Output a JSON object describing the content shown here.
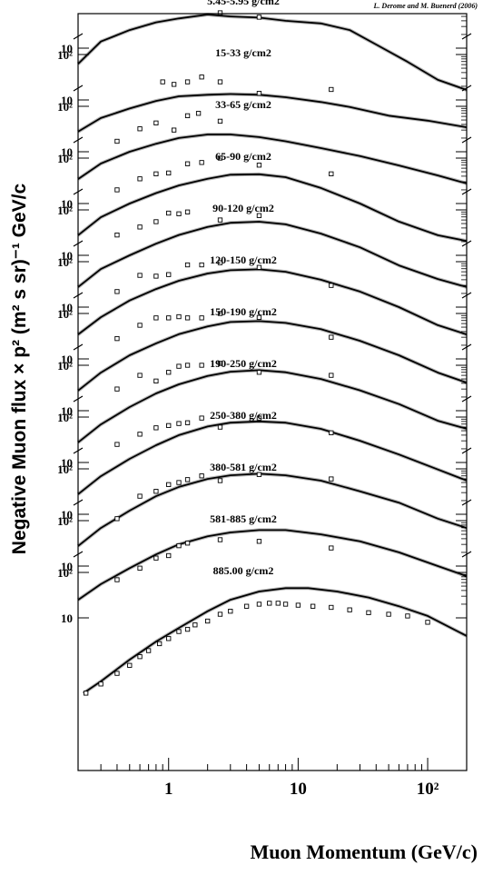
{
  "chart_data": {
    "type": "line",
    "credit": "L. Derome and M. Buenerd (2006)",
    "xlabel": "Muon Momentum (GeV/c)",
    "ylabel": "Negative Muon flux × p² (m² s sr)⁻¹ GeV/c",
    "xscale": "log",
    "yscale": "log",
    "xlim": [
      0.2,
      200
    ],
    "x_ticks": [
      {
        "value": 1,
        "label": "1"
      },
      {
        "value": 10,
        "label": "10"
      },
      {
        "value": 100,
        "label": "10²"
      }
    ],
    "panel_y_ticks": [
      {
        "value": 100,
        "label": "10²"
      },
      {
        "value": 10,
        "label": "10"
      }
    ],
    "panels": [
      {
        "label": "5.45-5.95 g/cm2",
        "model": [
          [
            0.2,
            4.5
          ],
          [
            0.3,
            14
          ],
          [
            0.5,
            25
          ],
          [
            0.8,
            37
          ],
          [
            1.2,
            45
          ],
          [
            2,
            55
          ],
          [
            3,
            50
          ],
          [
            5,
            47
          ],
          [
            8,
            40
          ],
          [
            15,
            35
          ],
          [
            25,
            25
          ],
          [
            40,
            12
          ],
          [
            70,
            5
          ],
          [
            120,
            2
          ],
          [
            200,
            1.2
          ]
        ],
        "data": [
          [
            2.5,
            60
          ],
          [
            5,
            48
          ]
        ]
      },
      {
        "label": "15-33 g/cm2",
        "model": [
          [
            0.2,
            2
          ],
          [
            0.3,
            4
          ],
          [
            0.5,
            6.5
          ],
          [
            0.8,
            9.5
          ],
          [
            1.2,
            12
          ],
          [
            2,
            13
          ],
          [
            3,
            13.5
          ],
          [
            5,
            13
          ],
          [
            8,
            11.5
          ],
          [
            15,
            9
          ],
          [
            25,
            7
          ],
          [
            50,
            4.5
          ],
          [
            100,
            3.5
          ],
          [
            200,
            2.5
          ]
        ],
        "data": [
          [
            0.9,
            25
          ],
          [
            1.1,
            22
          ],
          [
            1.4,
            25
          ],
          [
            1.8,
            32
          ],
          [
            2.5,
            25
          ],
          [
            5,
            14
          ],
          [
            18,
            17
          ]
        ]
      },
      {
        "label": "33-65 g/cm2",
        "model": [
          [
            0.2,
            2.5
          ],
          [
            0.3,
            5.5
          ],
          [
            0.5,
            10
          ],
          [
            0.8,
            15
          ],
          [
            1.2,
            20
          ],
          [
            2,
            24
          ],
          [
            3,
            24
          ],
          [
            5,
            21
          ],
          [
            8,
            17
          ],
          [
            15,
            12
          ],
          [
            30,
            8
          ],
          [
            60,
            5
          ],
          [
            120,
            3
          ],
          [
            200,
            2
          ]
        ],
        "data": [
          [
            0.4,
            17
          ],
          [
            0.6,
            32
          ],
          [
            0.8,
            43
          ],
          [
            1.1,
            30
          ],
          [
            1.4,
            62
          ],
          [
            1.7,
            70
          ],
          [
            2.5,
            47
          ]
        ]
      },
      {
        "label": "65-90 g/cm2",
        "model": [
          [
            0.2,
            2
          ],
          [
            0.3,
            5
          ],
          [
            0.5,
            10
          ],
          [
            0.8,
            17
          ],
          [
            1.2,
            25
          ],
          [
            2,
            35
          ],
          [
            3,
            43
          ],
          [
            5,
            44
          ],
          [
            8,
            38
          ],
          [
            15,
            22
          ],
          [
            30,
            10
          ],
          [
            60,
            4
          ],
          [
            120,
            2
          ],
          [
            200,
            1.5
          ]
        ],
        "data": [
          [
            0.4,
            20
          ],
          [
            0.6,
            35
          ],
          [
            0.8,
            45
          ],
          [
            1,
            47
          ],
          [
            1.4,
            75
          ],
          [
            1.8,
            80
          ],
          [
            2.5,
            100
          ],
          [
            5,
            70
          ],
          [
            18,
            45
          ]
        ]
      },
      {
        "label": "90-120 g/cm2",
        "model": [
          [
            0.2,
            2
          ],
          [
            0.3,
            5
          ],
          [
            0.5,
            10
          ],
          [
            0.8,
            18
          ],
          [
            1.2,
            28
          ],
          [
            2,
            42
          ],
          [
            3,
            52
          ],
          [
            5,
            55
          ],
          [
            8,
            48
          ],
          [
            15,
            30
          ],
          [
            30,
            15
          ],
          [
            60,
            6
          ],
          [
            120,
            3
          ],
          [
            200,
            2
          ]
        ],
        "data": [
          [
            0.4,
            28
          ],
          [
            0.6,
            42
          ],
          [
            0.8,
            55
          ],
          [
            1,
            85
          ],
          [
            1.2,
            82
          ],
          [
            1.4,
            90
          ],
          [
            2.5,
            60
          ],
          [
            5,
            75
          ]
        ]
      },
      {
        "label": "120-150 g/cm2",
        "model": [
          [
            0.2,
            2.5
          ],
          [
            0.3,
            6
          ],
          [
            0.5,
            14
          ],
          [
            0.8,
            25
          ],
          [
            1.2,
            38
          ],
          [
            2,
            55
          ],
          [
            3,
            65
          ],
          [
            5,
            68
          ],
          [
            8,
            60
          ],
          [
            15,
            40
          ],
          [
            30,
            22
          ],
          [
            60,
            10
          ],
          [
            120,
            4
          ],
          [
            200,
            2.5
          ]
        ],
        "data": [
          [
            0.4,
            22
          ],
          [
            0.6,
            50
          ],
          [
            0.8,
            48
          ],
          [
            1,
            52
          ],
          [
            1.4,
            85
          ],
          [
            1.8,
            85
          ],
          [
            2.5,
            95
          ],
          [
            5,
            75
          ],
          [
            18,
            30
          ]
        ]
      },
      {
        "label": "150-190 g/cm2",
        "model": [
          [
            0.2,
            2
          ],
          [
            0.3,
            5
          ],
          [
            0.5,
            12
          ],
          [
            0.8,
            22
          ],
          [
            1.2,
            35
          ],
          [
            2,
            52
          ],
          [
            3,
            65
          ],
          [
            5,
            68
          ],
          [
            8,
            62
          ],
          [
            15,
            45
          ],
          [
            30,
            25
          ],
          [
            60,
            12
          ],
          [
            120,
            5
          ],
          [
            200,
            3
          ]
        ],
        "data": [
          [
            0.4,
            28
          ],
          [
            0.6,
            55
          ],
          [
            0.8,
            80
          ],
          [
            1,
            80
          ],
          [
            1.2,
            85
          ],
          [
            1.4,
            80
          ],
          [
            1.8,
            80
          ],
          [
            2.5,
            100
          ],
          [
            5,
            82
          ],
          [
            18,
            30
          ]
        ]
      },
      {
        "label": "190-250 g/cm2",
        "model": [
          [
            0.2,
            2
          ],
          [
            0.3,
            5
          ],
          [
            0.5,
            12
          ],
          [
            0.8,
            24
          ],
          [
            1.2,
            38
          ],
          [
            2,
            58
          ],
          [
            3,
            72
          ],
          [
            5,
            78
          ],
          [
            8,
            70
          ],
          [
            15,
            50
          ],
          [
            30,
            28
          ],
          [
            60,
            14
          ],
          [
            120,
            6
          ],
          [
            200,
            4
          ]
        ],
        "data": [
          [
            0.4,
            30
          ],
          [
            0.6,
            60
          ],
          [
            0.8,
            45
          ],
          [
            1,
            70
          ],
          [
            1.2,
            95
          ],
          [
            1.4,
            100
          ],
          [
            1.8,
            100
          ],
          [
            2.5,
            110
          ],
          [
            5,
            70
          ],
          [
            18,
            60
          ]
        ]
      },
      {
        "label": "250-380 g/cm2",
        "model": [
          [
            0.2,
            2
          ],
          [
            0.3,
            5
          ],
          [
            0.5,
            12
          ],
          [
            0.8,
            24
          ],
          [
            1.2,
            40
          ],
          [
            2,
            62
          ],
          [
            3,
            75
          ],
          [
            5,
            80
          ],
          [
            8,
            75
          ],
          [
            15,
            55
          ],
          [
            30,
            30
          ],
          [
            60,
            15
          ],
          [
            120,
            7
          ],
          [
            200,
            4
          ]
        ],
        "data": [
          [
            0.4,
            25
          ],
          [
            0.6,
            42
          ],
          [
            0.8,
            58
          ],
          [
            1,
            65
          ],
          [
            1.2,
            72
          ],
          [
            1.4,
            75
          ],
          [
            1.8,
            95
          ],
          [
            2.5,
            60
          ],
          [
            5,
            95
          ],
          [
            18,
            45
          ]
        ]
      },
      {
        "label": "380-581 g/cm2",
        "model": [
          [
            0.2,
            2
          ],
          [
            0.3,
            5
          ],
          [
            0.5,
            12
          ],
          [
            0.8,
            25
          ],
          [
            1.2,
            40
          ],
          [
            2,
            60
          ],
          [
            3,
            72
          ],
          [
            5,
            78
          ],
          [
            8,
            72
          ],
          [
            15,
            55
          ],
          [
            30,
            32
          ],
          [
            60,
            18
          ],
          [
            120,
            8
          ],
          [
            200,
            5
          ]
        ],
        "data": [
          [
            0.4,
            8
          ],
          [
            0.6,
            25
          ],
          [
            0.8,
            32
          ],
          [
            1,
            45
          ],
          [
            1.2,
            50
          ],
          [
            1.4,
            58
          ],
          [
            1.8,
            70
          ],
          [
            2.5,
            55
          ],
          [
            5,
            75
          ],
          [
            18,
            60
          ]
        ]
      },
      {
        "label": "581-885 g/cm2",
        "model": [
          [
            0.2,
            1.8
          ],
          [
            0.3,
            4
          ],
          [
            0.5,
            9
          ],
          [
            0.8,
            18
          ],
          [
            1.2,
            30
          ],
          [
            2,
            45
          ],
          [
            3,
            55
          ],
          [
            5,
            62
          ],
          [
            8,
            62
          ],
          [
            15,
            50
          ],
          [
            30,
            35
          ],
          [
            60,
            20
          ],
          [
            120,
            10
          ],
          [
            200,
            6
          ]
        ],
        "data": [
          [
            0.4,
            5
          ],
          [
            0.6,
            9
          ],
          [
            0.8,
            15
          ],
          [
            1,
            17
          ],
          [
            1.2,
            28
          ],
          [
            1.4,
            32
          ],
          [
            2.5,
            38
          ],
          [
            5,
            35
          ],
          [
            18,
            25
          ]
        ]
      },
      {
        "label": "885.00 g/cm2",
        "model": [
          [
            0.22,
            0.22
          ],
          [
            0.3,
            0.4
          ],
          [
            0.5,
            1.2
          ],
          [
            0.8,
            3
          ],
          [
            1.2,
            6
          ],
          [
            2,
            14
          ],
          [
            3,
            25
          ],
          [
            5,
            38
          ],
          [
            8,
            45
          ],
          [
            12,
            45
          ],
          [
            20,
            38
          ],
          [
            35,
            28
          ],
          [
            60,
            18
          ],
          [
            100,
            11
          ],
          [
            200,
            4
          ]
        ],
        "data": [
          [
            0.23,
            0.22
          ],
          [
            0.3,
            0.35
          ],
          [
            0.4,
            0.6
          ],
          [
            0.5,
            0.9
          ],
          [
            0.6,
            1.4
          ],
          [
            0.7,
            1.9
          ],
          [
            0.85,
            2.7
          ],
          [
            1,
            3.5
          ],
          [
            1.2,
            5
          ],
          [
            1.4,
            5.6
          ],
          [
            1.6,
            7
          ],
          [
            2,
            8.5
          ],
          [
            2.5,
            12
          ],
          [
            3,
            14
          ],
          [
            4,
            18
          ],
          [
            5,
            20
          ],
          [
            6,
            21
          ],
          [
            7,
            21
          ],
          [
            8,
            20
          ],
          [
            10,
            19
          ],
          [
            13,
            18
          ],
          [
            18,
            17
          ],
          [
            25,
            15
          ],
          [
            35,
            13
          ],
          [
            50,
            12
          ],
          [
            70,
            11
          ],
          [
            100,
            8
          ]
        ]
      }
    ]
  }
}
